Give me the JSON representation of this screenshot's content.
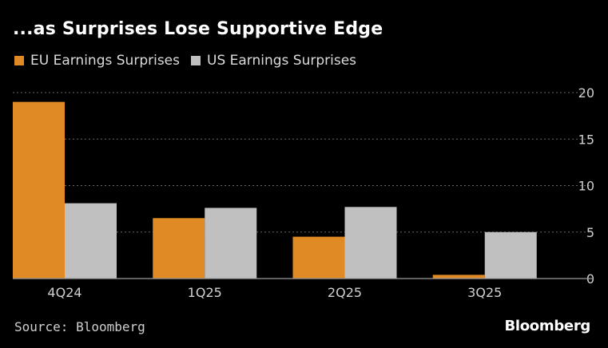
{
  "title": "...as Surprises Lose Supportive Edge",
  "source": "Source: Bloomberg",
  "brand": "Bloomberg",
  "colors": {
    "eu": "#e08a25",
    "us": "#c0c0c0",
    "grid": "#666666",
    "axis": "#9a9a9a",
    "tick": "#d0d0d0"
  },
  "legend": [
    {
      "label": "EU Earnings Surprises",
      "color": "#e08a25"
    },
    {
      "label": "US Earnings Surprises",
      "color": "#c0c0c0"
    }
  ],
  "chart_data": {
    "type": "bar",
    "title": "...as Surprises Lose Supportive Edge",
    "categories": [
      "4Q24",
      "1Q25",
      "2Q25",
      "3Q25"
    ],
    "series": [
      {
        "name": "EU Earnings Surprises",
        "values": [
          19.0,
          6.5,
          4.5,
          0.4
        ]
      },
      {
        "name": "US Earnings Surprises",
        "values": [
          8.1,
          7.6,
          7.7,
          5.0
        ]
      }
    ],
    "yticks": [
      0,
      5,
      10,
      15,
      20
    ],
    "ylim": [
      0,
      20
    ],
    "xlabel": "",
    "ylabel": "",
    "grid": true,
    "y_axis_side": "right",
    "legend_position": "top-left"
  }
}
